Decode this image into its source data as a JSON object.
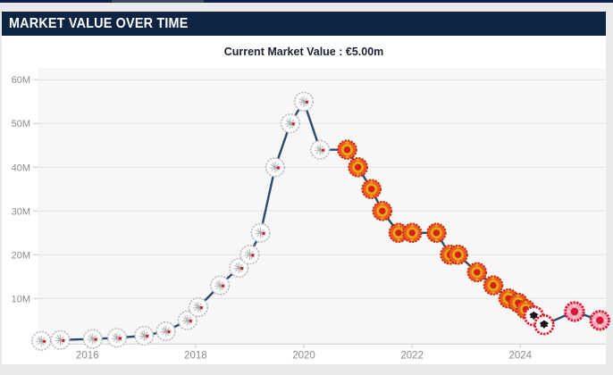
{
  "header": {
    "title": "MARKET VALUE OVER TIME"
  },
  "summary": {
    "current_value": "Current Market Value : €5.00m"
  },
  "colors": {
    "header_bg": "#0e2443",
    "header_text": "#ffffff",
    "page_bg": "#e9eaec",
    "card_bg": "#ffffff",
    "plot_bg": "#f7f7f8",
    "grid": "#e2e2e4",
    "axis_line": "#d2d2d5",
    "axis_text": "#8b8b8f",
    "value_text": "#1c2133",
    "line": "#2c4a6b"
  },
  "chart_data": {
    "type": "line",
    "title": "Market Value Over Time",
    "unit": "EUR (millions)",
    "xlabel": "",
    "ylabel": "",
    "grid": true,
    "legend": "none",
    "xlim": [
      2015.08,
      2025.58
    ],
    "ylim": [
      0,
      62.7
    ],
    "x_ticks": [
      {
        "year": 2016,
        "label": "2016"
      },
      {
        "year": 2018,
        "label": "2018"
      },
      {
        "year": 2020,
        "label": "2020"
      },
      {
        "year": 2022,
        "label": "2022"
      },
      {
        "year": 2024,
        "label": "2024"
      }
    ],
    "y_ticks": [
      {
        "value": 10,
        "label": "10M"
      },
      {
        "value": 20,
        "label": "20M"
      },
      {
        "value": 30,
        "label": "30M"
      },
      {
        "value": 40,
        "label": "40M"
      },
      {
        "value": 50,
        "label": "50M"
      },
      {
        "value": 60,
        "label": "60M"
      }
    ],
    "line_color": "#2c4a6b",
    "clubs": {
      "ajax": {
        "fill": "#fbfbfb",
        "stroke": "#b9bcc0",
        "detail": "#a9adb2",
        "accent": "#c3242f"
      },
      "manutd": {
        "outer": "#e85c1e",
        "edge": "#cb2a10",
        "ring": "#f0a41c",
        "center": "#cb2410"
      },
      "eintracht": {
        "ring": "#e2182b",
        "fill": "#ffffff",
        "eagle": "#17171c"
      },
      "girona": {
        "ring": "#dc1638",
        "fill": "#f4aebb",
        "center": "#d91538",
        "dots": "#fbe3e8"
      }
    },
    "points": [
      {
        "x": 2015.15,
        "value": 0.3,
        "club": "ajax"
      },
      {
        "x": 2015.5,
        "value": 0.5,
        "club": "ajax"
      },
      {
        "x": 2016.1,
        "value": 0.75,
        "club": "ajax"
      },
      {
        "x": 2016.55,
        "value": 1,
        "club": "ajax"
      },
      {
        "x": 2017.05,
        "value": 1.5,
        "club": "ajax"
      },
      {
        "x": 2017.45,
        "value": 2.5,
        "club": "ajax"
      },
      {
        "x": 2017.85,
        "value": 5,
        "club": "ajax"
      },
      {
        "x": 2018.05,
        "value": 8,
        "club": "ajax"
      },
      {
        "x": 2018.45,
        "value": 13,
        "club": "ajax"
      },
      {
        "x": 2018.8,
        "value": 17,
        "club": "ajax"
      },
      {
        "x": 2019.0,
        "value": 20,
        "club": "ajax"
      },
      {
        "x": 2019.2,
        "value": 25,
        "club": "ajax"
      },
      {
        "x": 2019.47,
        "value": 40,
        "club": "ajax"
      },
      {
        "x": 2019.75,
        "value": 50,
        "club": "ajax"
      },
      {
        "x": 2020.0,
        "value": 55,
        "club": "ajax"
      },
      {
        "x": 2020.3,
        "value": 44,
        "club": "ajax"
      },
      {
        "x": 2020.8,
        "value": 44,
        "club": "manutd"
      },
      {
        "x": 2021.0,
        "value": 40,
        "club": "manutd"
      },
      {
        "x": 2021.25,
        "value": 35,
        "club": "manutd"
      },
      {
        "x": 2021.45,
        "value": 30,
        "club": "manutd"
      },
      {
        "x": 2021.75,
        "value": 25,
        "club": "manutd"
      },
      {
        "x": 2022.0,
        "value": 25,
        "club": "manutd"
      },
      {
        "x": 2022.45,
        "value": 25,
        "club": "manutd"
      },
      {
        "x": 2022.7,
        "value": 20,
        "club": "manutd"
      },
      {
        "x": 2022.85,
        "value": 20,
        "club": "manutd"
      },
      {
        "x": 2023.2,
        "value": 16,
        "club": "manutd"
      },
      {
        "x": 2023.5,
        "value": 13,
        "club": "manutd"
      },
      {
        "x": 2023.78,
        "value": 10,
        "club": "manutd"
      },
      {
        "x": 2023.96,
        "value": 9,
        "club": "manutd"
      },
      {
        "x": 2024.1,
        "value": 7.5,
        "club": "manutd"
      },
      {
        "x": 2024.25,
        "value": 6,
        "club": "eintracht"
      },
      {
        "x": 2024.44,
        "value": 4,
        "club": "eintracht"
      },
      {
        "x": 2025.0,
        "value": 7,
        "club": "girona"
      },
      {
        "x": 2025.47,
        "value": 5,
        "club": "girona"
      }
    ]
  }
}
